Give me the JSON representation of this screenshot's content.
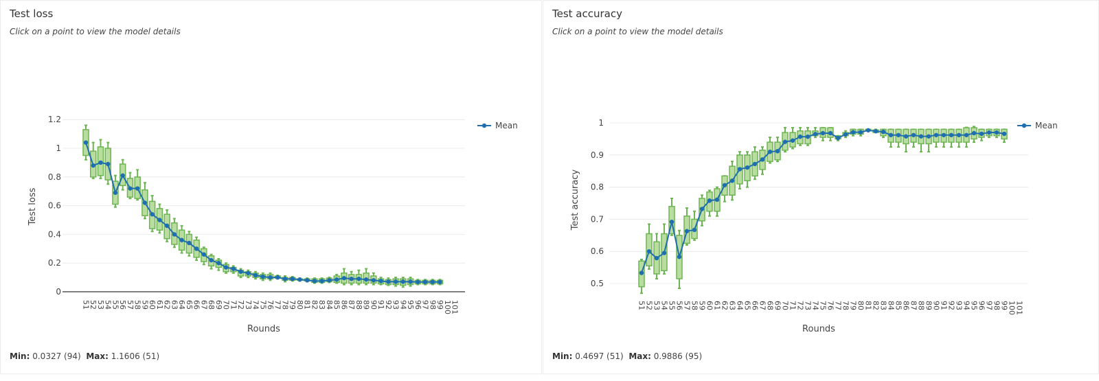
{
  "panels": [
    {
      "title": "Test loss",
      "subtitle": "Click on a point to view the model details",
      "min_label": "Min:",
      "min_value": "0.0327 (94)",
      "max_label": "Max:",
      "max_value": "1.1606 (51)"
    },
    {
      "title": "Test accuracy",
      "subtitle": "Click on a point to view the model details",
      "min_label": "Min:",
      "min_value": "0.4697 (51)",
      "max_label": "Max:",
      "max_value": "0.9886 (95)"
    }
  ],
  "colors": {
    "box_fill": "#b9dca0",
    "box_stroke": "#6db552",
    "mean_line": "#1f6fb0",
    "grid": "#ececec",
    "axis": "#555555"
  },
  "chart_data": [
    {
      "type": "box+line",
      "title": "Test loss",
      "xlabel": "Rounds",
      "ylabel": "Test loss",
      "ylim": [
        0,
        1.25
      ],
      "yticks": [
        "0",
        "0.2",
        "0.4",
        "0.6",
        "0.8",
        "1",
        "1.2"
      ],
      "ytick_values": [
        0,
        0.2,
        0.4,
        0.6,
        0.8,
        1,
        1.2
      ],
      "legend": [
        "Mean"
      ],
      "legend_placement": "top-right",
      "grid": true,
      "x_start": 51,
      "x_end": 101,
      "mean": [
        1.04,
        0.88,
        0.9,
        0.89,
        0.69,
        0.81,
        0.72,
        0.72,
        0.62,
        0.54,
        0.5,
        0.46,
        0.4,
        0.36,
        0.34,
        0.3,
        0.26,
        0.22,
        0.2,
        0.17,
        0.16,
        0.14,
        0.13,
        0.115,
        0.105,
        0.1,
        0.1,
        0.09,
        0.09,
        0.085,
        0.08,
        0.075,
        0.075,
        0.08,
        0.085,
        0.095,
        0.09,
        0.09,
        0.085,
        0.08,
        0.075,
        0.07,
        0.07,
        0.07,
        0.07,
        0.068,
        0.068,
        0.068,
        0.068
      ],
      "box": [
        [
          0.92,
          0.95,
          1.13,
          1.1606
        ],
        [
          0.79,
          0.8,
          0.98,
          1.04
        ],
        [
          0.79,
          0.81,
          1.01,
          1.06
        ],
        [
          0.75,
          0.78,
          1.0,
          1.04
        ],
        [
          0.59,
          0.61,
          0.77,
          0.81
        ],
        [
          0.71,
          0.74,
          0.89,
          0.92
        ],
        [
          0.65,
          0.66,
          0.79,
          0.83
        ],
        [
          0.64,
          0.65,
          0.8,
          0.85
        ],
        [
          0.51,
          0.53,
          0.71,
          0.76
        ],
        [
          0.42,
          0.44,
          0.63,
          0.67
        ],
        [
          0.41,
          0.43,
          0.58,
          0.61
        ],
        [
          0.35,
          0.37,
          0.54,
          0.57
        ],
        [
          0.31,
          0.33,
          0.48,
          0.51
        ],
        [
          0.27,
          0.29,
          0.43,
          0.46
        ],
        [
          0.25,
          0.27,
          0.4,
          0.42
        ],
        [
          0.22,
          0.24,
          0.36,
          0.38
        ],
        [
          0.19,
          0.21,
          0.3,
          0.31
        ],
        [
          0.16,
          0.18,
          0.25,
          0.26
        ],
        [
          0.15,
          0.17,
          0.22,
          0.23
        ],
        [
          0.13,
          0.14,
          0.19,
          0.2
        ],
        [
          0.13,
          0.14,
          0.17,
          0.18
        ],
        [
          0.1,
          0.11,
          0.15,
          0.16
        ],
        [
          0.1,
          0.11,
          0.14,
          0.15
        ],
        [
          0.09,
          0.1,
          0.13,
          0.14
        ],
        [
          0.08,
          0.09,
          0.12,
          0.13
        ],
        [
          0.08,
          0.09,
          0.12,
          0.13
        ],
        [
          0.09,
          0.095,
          0.11,
          0.115
        ],
        [
          0.07,
          0.08,
          0.1,
          0.11
        ],
        [
          0.075,
          0.08,
          0.1,
          0.105
        ],
        [
          0.075,
          0.08,
          0.09,
          0.095
        ],
        [
          0.07,
          0.075,
          0.09,
          0.095
        ],
        [
          0.06,
          0.065,
          0.09,
          0.095
        ],
        [
          0.06,
          0.065,
          0.09,
          0.095
        ],
        [
          0.065,
          0.07,
          0.095,
          0.1
        ],
        [
          0.06,
          0.065,
          0.11,
          0.12
        ],
        [
          0.05,
          0.06,
          0.13,
          0.16
        ],
        [
          0.05,
          0.06,
          0.12,
          0.14
        ],
        [
          0.05,
          0.06,
          0.12,
          0.15
        ],
        [
          0.05,
          0.06,
          0.13,
          0.16
        ],
        [
          0.05,
          0.06,
          0.11,
          0.13
        ],
        [
          0.05,
          0.055,
          0.09,
          0.1
        ],
        [
          0.045,
          0.05,
          0.085,
          0.095
        ],
        [
          0.04,
          0.05,
          0.09,
          0.1
        ],
        [
          0.0327,
          0.045,
          0.09,
          0.1
        ],
        [
          0.04,
          0.05,
          0.09,
          0.1
        ],
        [
          0.05,
          0.055,
          0.08,
          0.085
        ],
        [
          0.05,
          0.055,
          0.08,
          0.085
        ],
        [
          0.05,
          0.055,
          0.08,
          0.085
        ],
        [
          0.05,
          0.055,
          0.08,
          0.085
        ]
      ]
    },
    {
      "type": "box+line",
      "title": "Test accuracy",
      "xlabel": "Rounds",
      "ylabel": "Test accuracy",
      "ylim": [
        0.44,
        1.02
      ],
      "yticks": [
        "0.5",
        "0.6",
        "0.7",
        "0.8",
        "0.9",
        "1"
      ],
      "ytick_values": [
        0.5,
        0.6,
        0.7,
        0.8,
        0.9,
        1
      ],
      "legend": [
        "Mean"
      ],
      "legend_placement": "top-right",
      "grid": true,
      "x_start": 51,
      "x_end": 101,
      "mean": [
        0.533,
        0.6,
        0.579,
        0.595,
        0.692,
        0.583,
        0.663,
        0.667,
        0.732,
        0.758,
        0.761,
        0.806,
        0.82,
        0.856,
        0.861,
        0.872,
        0.886,
        0.91,
        0.912,
        0.941,
        0.945,
        0.957,
        0.957,
        0.965,
        0.968,
        0.968,
        0.953,
        0.964,
        0.971,
        0.971,
        0.977,
        0.974,
        0.972,
        0.962,
        0.962,
        0.958,
        0.962,
        0.958,
        0.958,
        0.962,
        0.962,
        0.962,
        0.962,
        0.962,
        0.968,
        0.966,
        0.97,
        0.97,
        0.966
      ],
      "box": [
        [
          0.4697,
          0.49,
          0.57,
          0.575
        ],
        [
          0.545,
          0.555,
          0.655,
          0.685
        ],
        [
          0.515,
          0.53,
          0.63,
          0.655
        ],
        [
          0.53,
          0.54,
          0.655,
          0.685
        ],
        [
          0.65,
          0.655,
          0.74,
          0.765
        ],
        [
          0.485,
          0.515,
          0.65,
          0.665
        ],
        [
          0.62,
          0.625,
          0.71,
          0.735
        ],
        [
          0.635,
          0.64,
          0.7,
          0.725
        ],
        [
          0.68,
          0.695,
          0.765,
          0.775
        ],
        [
          0.71,
          0.725,
          0.785,
          0.79
        ],
        [
          0.71,
          0.725,
          0.795,
          0.8
        ],
        [
          0.755,
          0.775,
          0.835,
          0.835
        ],
        [
          0.76,
          0.775,
          0.865,
          0.88
        ],
        [
          0.795,
          0.81,
          0.9,
          0.91
        ],
        [
          0.8,
          0.82,
          0.9,
          0.91
        ],
        [
          0.825,
          0.835,
          0.91,
          0.925
        ],
        [
          0.84,
          0.855,
          0.915,
          0.925
        ],
        [
          0.875,
          0.88,
          0.94,
          0.955
        ],
        [
          0.88,
          0.885,
          0.94,
          0.955
        ],
        [
          0.91,
          0.915,
          0.97,
          0.985
        ],
        [
          0.92,
          0.925,
          0.97,
          0.985
        ],
        [
          0.93,
          0.935,
          0.975,
          0.985
        ],
        [
          0.93,
          0.935,
          0.975,
          0.985
        ],
        [
          0.955,
          0.96,
          0.975,
          0.985
        ],
        [
          0.945,
          0.955,
          0.985,
          0.985
        ],
        [
          0.945,
          0.955,
          0.985,
          0.985
        ],
        [
          0.945,
          0.95,
          0.96,
          0.96
        ],
        [
          0.955,
          0.96,
          0.97,
          0.975
        ],
        [
          0.96,
          0.965,
          0.98,
          0.98
        ],
        [
          0.96,
          0.965,
          0.98,
          0.98
        ],
        [
          0.975,
          0.975,
          0.98,
          0.98
        ],
        [
          0.97,
          0.97,
          0.978,
          0.98
        ],
        [
          0.955,
          0.96,
          0.98,
          0.98
        ],
        [
          0.925,
          0.94,
          0.98,
          0.98
        ],
        [
          0.925,
          0.94,
          0.98,
          0.98
        ],
        [
          0.91,
          0.935,
          0.98,
          0.98
        ],
        [
          0.925,
          0.94,
          0.98,
          0.98
        ],
        [
          0.91,
          0.935,
          0.98,
          0.98
        ],
        [
          0.91,
          0.935,
          0.98,
          0.98
        ],
        [
          0.925,
          0.94,
          0.98,
          0.98
        ],
        [
          0.925,
          0.94,
          0.98,
          0.98
        ],
        [
          0.925,
          0.94,
          0.98,
          0.98
        ],
        [
          0.925,
          0.94,
          0.98,
          0.98
        ],
        [
          0.925,
          0.94,
          0.985,
          0.986
        ],
        [
          0.94,
          0.95,
          0.985,
          0.9886
        ],
        [
          0.945,
          0.955,
          0.98,
          0.98
        ],
        [
          0.955,
          0.96,
          0.98,
          0.98
        ],
        [
          0.955,
          0.96,
          0.98,
          0.98
        ],
        [
          0.94,
          0.95,
          0.98,
          0.98
        ]
      ]
    }
  ]
}
